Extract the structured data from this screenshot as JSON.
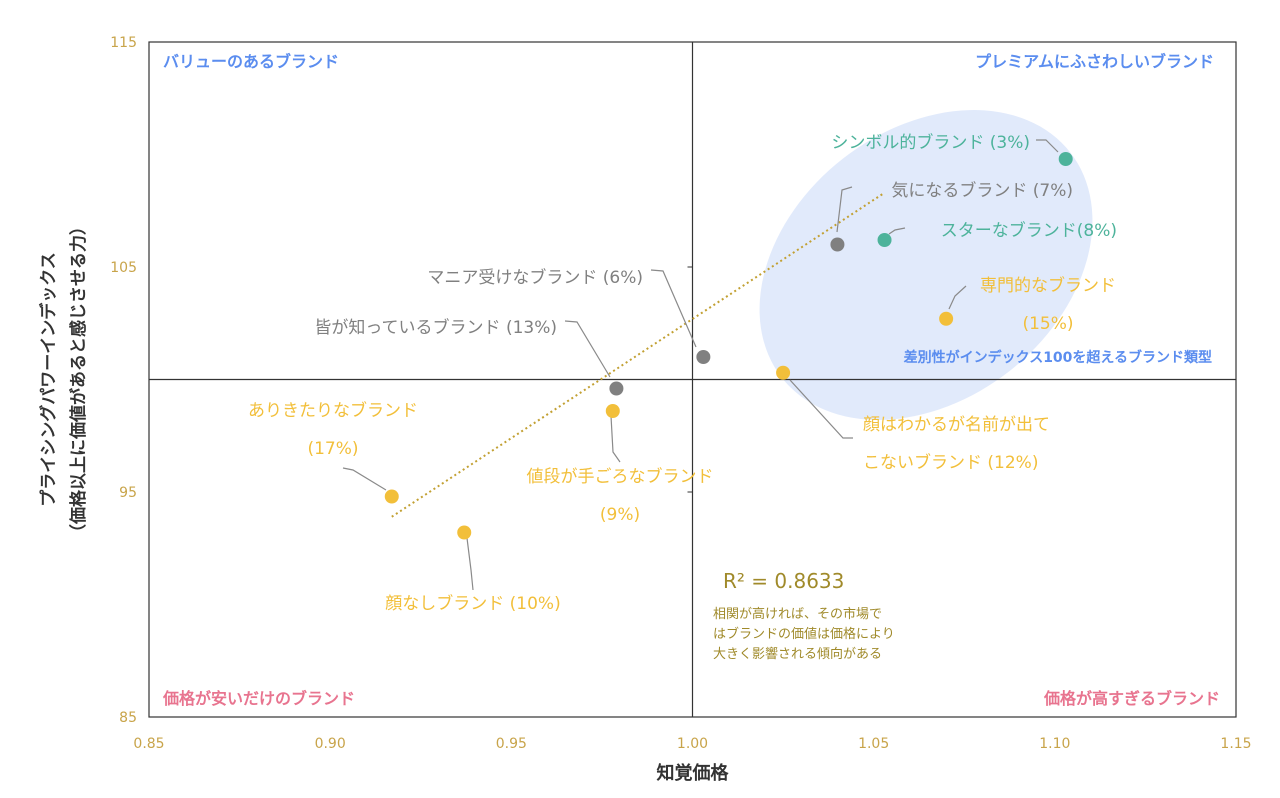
{
  "chart_data": {
    "type": "scatter",
    "xlabel": "知覚価格",
    "ylabel_line1": "プライシングパワーインデックス",
    "ylabel_line2": "（価格以上に価値があると感じさせる力）",
    "xlim": [
      0.85,
      1.15
    ],
    "ylim": [
      85,
      115
    ],
    "x_ticks": [
      0.85,
      0.9,
      0.95,
      1.0,
      1.05,
      1.1,
      1.15
    ],
    "x_tick_labels": [
      "0.85",
      "0.90",
      "0.95",
      "1.00",
      "1.05",
      "1.10",
      "1.15"
    ],
    "y_ticks": [
      85,
      95,
      105,
      115
    ],
    "y_tick_labels": [
      "85",
      "95",
      "105",
      "115"
    ],
    "reference_x": 1.0,
    "reference_y": 100,
    "grid": false,
    "colors": {
      "yellow": "#F2BF3A",
      "teal": "#4DB39B",
      "gray": "#808080",
      "blue_text": "#5B8DEF",
      "pink_text": "#E8748F",
      "axis_text": "#C8A44A",
      "ellipse_fill": "#DCE6FA",
      "trendline": "#C2A032",
      "r2_text": "#A08A2A"
    },
    "quadrant_labels": {
      "top_left": "バリューのあるブランド",
      "top_right": "プレミアムにふさわしいブランド",
      "bottom_left": "価格が安いだけのブランド",
      "bottom_right": "価格が高すぎるブランド"
    },
    "ellipse_label": "差別性がインデックス100を超えるブランド類型",
    "trendline": {
      "x1": 0.917,
      "y1": 93.9,
      "x2": 1.053,
      "y2": 108.3
    },
    "r2_label": "R² = 0.8633",
    "note_lines": [
      "相関が高ければ、その市場で",
      "はブランドの価値は価格により",
      "大きく影響される傾向がある"
    ],
    "points": [
      {
        "name": "シンボル的ブランド (3%)",
        "x": 1.103,
        "y": 109.8,
        "color": "teal"
      },
      {
        "name": "気になるブランド (7%)",
        "x": 1.04,
        "y": 106.0,
        "color": "gray"
      },
      {
        "name": "スターなブランド(8%)",
        "x": 1.053,
        "y": 106.2,
        "color": "teal"
      },
      {
        "name": "専門的なブランド (15%)",
        "x": 1.07,
        "y": 102.7,
        "color": "yellow"
      },
      {
        "name": "マニア受けなブランド (6%)",
        "x": 1.003,
        "y": 101.0,
        "color": "gray"
      },
      {
        "name": "皆が知っているブランド (13%)",
        "x": 0.979,
        "y": 99.6,
        "color": "gray"
      },
      {
        "name": "顔はわかるが名前が出てこないブランド (12%)",
        "x": 1.025,
        "y": 100.3,
        "color": "yellow"
      },
      {
        "name": "値段が手ごろなブランド (9%)",
        "x": 0.978,
        "y": 98.6,
        "color": "yellow"
      },
      {
        "name": "ありきたりなブランド (17%)",
        "x": 0.917,
        "y": 94.8,
        "color": "yellow"
      },
      {
        "name": "顔なしブランド (10%)",
        "x": 0.937,
        "y": 93.2,
        "color": "yellow"
      }
    ],
    "point_labels": [
      {
        "lines": [
          "シンボル的ブランド (3%)"
        ],
        "color": "teal"
      },
      {
        "lines": [
          "気になるブランド (7%)"
        ],
        "color": "gray"
      },
      {
        "lines": [
          "スターなブランド(8%)"
        ],
        "color": "teal"
      },
      {
        "lines": [
          "専門的なブランド",
          "(15%)"
        ],
        "color": "yellow"
      },
      {
        "lines": [
          "マニア受けなブランド (6%)"
        ],
        "color": "gray"
      },
      {
        "lines": [
          "皆が知っているブランド (13%)"
        ],
        "color": "gray"
      },
      {
        "lines": [
          "顔はわかるが名前が出て",
          "こないブランド (12%)"
        ],
        "color": "yellow"
      },
      {
        "lines": [
          "値段が手ごろなブランド",
          "(9%)"
        ],
        "color": "yellow"
      },
      {
        "lines": [
          "ありきたりなブランド",
          "(17%)"
        ],
        "color": "yellow"
      },
      {
        "lines": [
          "顔なしブランド (10%)"
        ],
        "color": "yellow"
      }
    ]
  }
}
